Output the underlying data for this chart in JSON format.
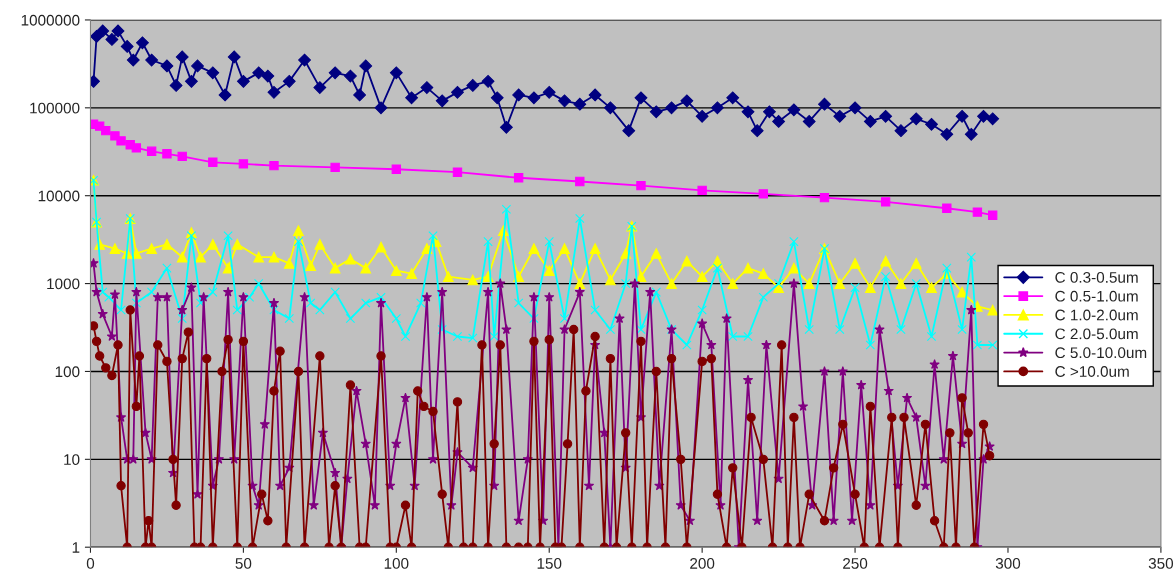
{
  "chart_data": {
    "type": "line",
    "log": "y",
    "xlim": [
      0,
      350
    ],
    "xticks": [
      0,
      50,
      100,
      150,
      200,
      250,
      300,
      350
    ],
    "ylim": [
      1,
      1000000
    ],
    "yticks": [
      1,
      10,
      100,
      1000,
      10000,
      100000,
      1000000
    ],
    "grid": "y",
    "legend": "right",
    "line_style": "solid",
    "series": [
      {
        "name": "C 0.3-0.5um",
        "color": "#000080",
        "marker": "diamond",
        "x": [
          1,
          2,
          4,
          7,
          9,
          12,
          14,
          17,
          20,
          25,
          28,
          30,
          33,
          35,
          40,
          44,
          47,
          50,
          55,
          58,
          60,
          65,
          70,
          75,
          80,
          85,
          88,
          90,
          95,
          100,
          105,
          110,
          115,
          120,
          125,
          130,
          133,
          136,
          140,
          145,
          150,
          155,
          160,
          165,
          170,
          176,
          180,
          185,
          190,
          195,
          200,
          205,
          210,
          215,
          218,
          222,
          225,
          230,
          235,
          240,
          245,
          250,
          255,
          260,
          265,
          270,
          275,
          280,
          285,
          288,
          292,
          295
        ],
        "values": [
          200000,
          650000,
          750000,
          600000,
          750000,
          500000,
          350000,
          550000,
          350000,
          300000,
          180000,
          380000,
          200000,
          300000,
          250000,
          140000,
          380000,
          200000,
          250000,
          230000,
          150000,
          200000,
          350000,
          170000,
          250000,
          230000,
          140000,
          300000,
          100000,
          250000,
          130000,
          170000,
          120000,
          150000,
          180000,
          200000,
          130000,
          60000,
          140000,
          130000,
          150000,
          120000,
          110000,
          140000,
          100000,
          55000,
          130000,
          90000,
          100000,
          120000,
          80000,
          100000,
          130000,
          90000,
          55000,
          90000,
          70000,
          95000,
          70000,
          110000,
          80000,
          100000,
          70000,
          80000,
          55000,
          75000,
          65000,
          50000,
          80000,
          50000,
          80000,
          75000
        ]
      },
      {
        "name": "C 0.5-1.0um",
        "color": "#ff00ff",
        "marker": "square",
        "x": [
          1,
          3,
          5,
          8,
          10,
          13,
          15,
          20,
          25,
          30,
          40,
          50,
          60,
          80,
          100,
          120,
          140,
          160,
          180,
          200,
          220,
          240,
          260,
          280,
          290,
          295
        ],
        "values": [
          65000,
          62000,
          55000,
          48000,
          42000,
          38000,
          35000,
          32000,
          30000,
          28000,
          24000,
          23000,
          22000,
          21000,
          20000,
          18500,
          16000,
          14500,
          13000,
          11500,
          10500,
          9500,
          8500,
          7200,
          6500,
          6000
        ]
      },
      {
        "name": "C 1.0-2.0um",
        "color": "#ffff00",
        "marker": "triangle",
        "x": [
          1,
          2,
          3,
          8,
          12,
          13,
          15,
          20,
          25,
          30,
          33,
          36,
          40,
          45,
          48,
          55,
          60,
          65,
          68,
          72,
          75,
          80,
          85,
          90,
          95,
          100,
          105,
          110,
          113,
          117,
          125,
          130,
          135,
          140,
          145,
          150,
          155,
          160,
          165,
          170,
          175,
          177,
          180,
          185,
          190,
          195,
          200,
          205,
          210,
          215,
          220,
          225,
          230,
          235,
          240,
          245,
          250,
          255,
          260,
          265,
          270,
          275,
          280,
          285,
          290,
          295
        ],
        "values": [
          15000,
          5000,
          2800,
          2500,
          2200,
          5500,
          2200,
          2500,
          2800,
          2000,
          3800,
          2000,
          2800,
          1500,
          2800,
          2000,
          2000,
          1700,
          4000,
          1600,
          2800,
          1500,
          1900,
          1500,
          2600,
          1400,
          1300,
          2500,
          3000,
          1200,
          1100,
          1200,
          4000,
          1200,
          2500,
          1400,
          2500,
          1000,
          2500,
          1100,
          2200,
          4500,
          1200,
          2200,
          1000,
          1800,
          1200,
          1800,
          1000,
          1500,
          1300,
          900,
          1500,
          1000,
          2500,
          1000,
          1700,
          900,
          1800,
          1000,
          1700,
          900,
          1300,
          800,
          550,
          500
        ]
      },
      {
        "name": "C 2.0-5.0um",
        "color": "#00ffff",
        "marker": "cross",
        "x": [
          1,
          2,
          4,
          6,
          10,
          13,
          15,
          20,
          25,
          30,
          33,
          36,
          40,
          45,
          48,
          52,
          55,
          60,
          65,
          68,
          72,
          75,
          80,
          85,
          90,
          95,
          100,
          103,
          108,
          112,
          115,
          120,
          125,
          130,
          132,
          136,
          140,
          145,
          150,
          155,
          160,
          165,
          170,
          175,
          177,
          180,
          185,
          190,
          195,
          200,
          205,
          210,
          215,
          220,
          225,
          230,
          235,
          240,
          245,
          250,
          255,
          260,
          265,
          270,
          275,
          280,
          285,
          288,
          290,
          295
        ],
        "values": [
          15000,
          5000,
          800,
          700,
          500,
          5500,
          600,
          800,
          1500,
          400,
          3500,
          600,
          800,
          3500,
          500,
          700,
          1000,
          500,
          400,
          3000,
          600,
          500,
          800,
          400,
          600,
          700,
          400,
          250,
          600,
          3500,
          300,
          250,
          240,
          3000,
          250,
          7000,
          600,
          400,
          3000,
          400,
          5500,
          500,
          300,
          1000,
          4500,
          300,
          800,
          300,
          200,
          500,
          1500,
          250,
          250,
          700,
          1000,
          3000,
          300,
          2500,
          300,
          900,
          200,
          1200,
          300,
          1000,
          250,
          1500,
          300,
          2000,
          200,
          200
        ]
      },
      {
        "name": "C 5.0-10.0um",
        "color": "#800080",
        "marker": "star",
        "x": [
          1,
          2,
          4,
          7,
          8,
          10,
          12,
          14,
          15,
          18,
          20,
          22,
          25,
          27,
          30,
          33,
          35,
          37,
          40,
          42,
          45,
          47,
          50,
          53,
          55,
          57,
          60,
          62,
          65,
          70,
          73,
          76,
          80,
          82,
          84,
          87,
          90,
          93,
          95,
          98,
          100,
          103,
          106,
          110,
          112,
          115,
          118,
          120,
          125,
          130,
          132,
          134,
          136,
          140,
          143,
          145,
          148,
          150,
          153,
          155,
          160,
          163,
          165,
          168,
          170,
          173,
          175,
          178,
          180,
          183,
          186,
          190,
          193,
          196,
          200,
          203,
          206,
          208,
          212,
          215,
          218,
          221,
          225,
          230,
          233,
          236,
          240,
          243,
          246,
          249,
          252,
          255,
          258,
          261,
          264,
          267,
          270,
          273,
          276,
          279,
          282,
          285,
          288,
          290,
          292,
          294
        ],
        "values": [
          1700,
          800,
          450,
          250,
          750,
          30,
          10,
          10,
          800,
          20,
          10,
          700,
          700,
          7,
          500,
          900,
          4,
          700,
          5,
          10,
          800,
          10,
          700,
          5,
          3,
          25,
          600,
          5,
          8,
          700,
          3,
          20,
          7,
          1,
          6,
          60,
          15,
          3,
          600,
          5,
          15,
          50,
          5,
          700,
          10,
          800,
          3,
          12,
          8,
          800,
          5,
          1000,
          300,
          2,
          10,
          700,
          2,
          700,
          1,
          300,
          800,
          5,
          200,
          20,
          1,
          400,
          8,
          1000,
          30,
          800,
          5,
          300,
          3,
          2,
          350,
          200,
          3,
          400,
          1,
          80,
          2,
          200,
          6,
          1000,
          40,
          3,
          100,
          2,
          100,
          2,
          70,
          3,
          300,
          60,
          5,
          50,
          30,
          5,
          120,
          10,
          150,
          15,
          500,
          1,
          10,
          14
        ]
      },
      {
        "name": "C >10.0um",
        "color": "#800000",
        "marker": "circle",
        "x": [
          1,
          2,
          3,
          5,
          7,
          9,
          10,
          12,
          13,
          15,
          16,
          18,
          19,
          20,
          22,
          25,
          27,
          28,
          30,
          32,
          34,
          36,
          38,
          40,
          43,
          45,
          48,
          50,
          53,
          56,
          58,
          60,
          62,
          64,
          68,
          70,
          75,
          78,
          80,
          82,
          85,
          88,
          90,
          95,
          98,
          100,
          103,
          105,
          107,
          109,
          112,
          115,
          117,
          120,
          122,
          125,
          128,
          130,
          132,
          134,
          136,
          140,
          143,
          145,
          147,
          150,
          152,
          154,
          156,
          158,
          160,
          162,
          165,
          168,
          170,
          172,
          175,
          177,
          180,
          182,
          185,
          188,
          190,
          193,
          195,
          200,
          203,
          205,
          208,
          210,
          213,
          216,
          220,
          223,
          226,
          228,
          230,
          232,
          235,
          240,
          243,
          246,
          250,
          253,
          255,
          258,
          262,
          264,
          266,
          270,
          273,
          276,
          279,
          281,
          283,
          285,
          287,
          289,
          292,
          294
        ],
        "values": [
          330,
          220,
          150,
          110,
          90,
          200,
          5,
          1,
          500,
          40,
          150,
          1,
          2,
          1,
          200,
          130,
          10,
          3,
          140,
          280,
          1,
          1,
          140,
          1,
          100,
          230,
          1,
          220,
          1,
          4,
          2,
          60,
          170,
          1,
          100,
          1,
          150,
          1,
          5,
          1,
          70,
          1,
          1,
          150,
          1,
          1,
          3,
          1,
          60,
          40,
          35,
          4,
          1,
          45,
          1,
          1,
          200,
          1,
          15,
          200,
          1,
          1,
          1,
          220,
          1,
          230,
          1,
          1,
          15,
          300,
          1,
          60,
          250,
          1,
          140,
          1,
          20,
          1,
          220,
          1,
          100,
          1,
          140,
          10,
          1,
          130,
          140,
          4,
          1,
          8,
          1,
          30,
          10,
          1,
          200,
          1,
          30,
          1,
          4,
          2,
          8,
          25,
          4,
          1,
          40,
          1,
          30,
          1,
          30,
          3,
          25,
          2,
          1,
          20,
          1,
          50,
          20,
          1,
          25,
          11
        ]
      }
    ]
  }
}
